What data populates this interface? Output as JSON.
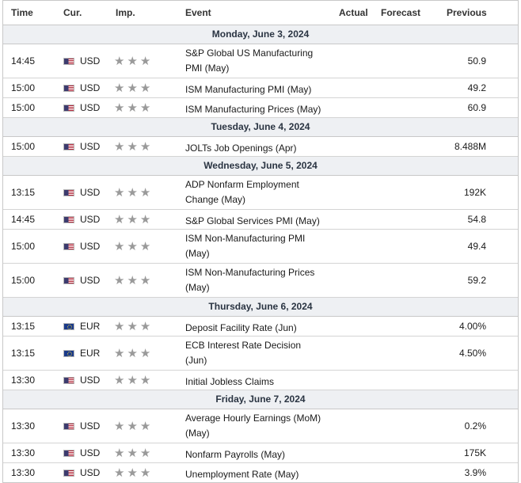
{
  "columns": {
    "time": "Time",
    "currency": "Cur.",
    "importance": "Imp.",
    "event": "Event",
    "actual": "Actual",
    "forecast": "Forecast",
    "previous": "Previous"
  },
  "icons": {
    "us": "us-flag-icon",
    "eu": "eu-flag-icon",
    "star": "star-icon"
  },
  "days": [
    {
      "label": "Monday, June 3, 2024",
      "rows": [
        {
          "time": "14:45",
          "flag": "us",
          "cur": "USD",
          "stars": "★★★",
          "event": "S&P Global US Manufacturing PMI (May)",
          "actual": "",
          "forecast": "",
          "previous": "50.9",
          "tall": true
        },
        {
          "time": "15:00",
          "flag": "us",
          "cur": "USD",
          "stars": "★★★",
          "event": "ISM Manufacturing PMI (May)",
          "actual": "",
          "forecast": "",
          "previous": "49.2",
          "tall": false
        },
        {
          "time": "15:00",
          "flag": "us",
          "cur": "USD",
          "stars": "★★★",
          "event": "ISM Manufacturing Prices (May)",
          "actual": "",
          "forecast": "",
          "previous": "60.9",
          "tall": false
        }
      ]
    },
    {
      "label": "Tuesday, June 4, 2024",
      "rows": [
        {
          "time": "15:00",
          "flag": "us",
          "cur": "USD",
          "stars": "★★★",
          "event": "JOLTs Job Openings (Apr)",
          "actual": "",
          "forecast": "",
          "previous": "8.488M",
          "tall": false
        }
      ]
    },
    {
      "label": "Wednesday, June 5, 2024",
      "rows": [
        {
          "time": "13:15",
          "flag": "us",
          "cur": "USD",
          "stars": "★★★",
          "event": "ADP Nonfarm Employment Change (May)",
          "actual": "",
          "forecast": "",
          "previous": "192K",
          "tall": true
        },
        {
          "time": "14:45",
          "flag": "us",
          "cur": "USD",
          "stars": "★★★",
          "event": "S&P Global Services PMI (May)",
          "actual": "",
          "forecast": "",
          "previous": "54.8",
          "tall": false
        },
        {
          "time": "15:00",
          "flag": "us",
          "cur": "USD",
          "stars": "★★★",
          "event": "ISM Non-Manufacturing PMI (May)",
          "actual": "",
          "forecast": "",
          "previous": "49.4",
          "tall": true
        },
        {
          "time": "15:00",
          "flag": "us",
          "cur": "USD",
          "stars": "★★★",
          "event": "ISM Non-Manufacturing Prices (May)",
          "actual": "",
          "forecast": "",
          "previous": "59.2",
          "tall": true
        }
      ]
    },
    {
      "label": "Thursday, June 6, 2024",
      "rows": [
        {
          "time": "13:15",
          "flag": "eu",
          "cur": "EUR",
          "stars": "★★★",
          "event": "Deposit Facility Rate (Jun)",
          "actual": "",
          "forecast": "",
          "previous": "4.00%",
          "tall": false
        },
        {
          "time": "13:15",
          "flag": "eu",
          "cur": "EUR",
          "stars": "★★★",
          "event": "ECB Interest Rate Decision (Jun)",
          "actual": "",
          "forecast": "",
          "previous": "4.50%",
          "tall": true
        },
        {
          "time": "13:30",
          "flag": "us",
          "cur": "USD",
          "stars": "★★★",
          "event": "Initial Jobless Claims",
          "actual": "",
          "forecast": "",
          "previous": "",
          "tall": false
        }
      ]
    },
    {
      "label": "Friday, June 7, 2024",
      "rows": [
        {
          "time": "13:30",
          "flag": "us",
          "cur": "USD",
          "stars": "★★★",
          "event": "Average Hourly Earnings (MoM) (May)",
          "actual": "",
          "forecast": "",
          "previous": "0.2%",
          "tall": true
        },
        {
          "time": "13:30",
          "flag": "us",
          "cur": "USD",
          "stars": "★★★",
          "event": "Nonfarm Payrolls (May)",
          "actual": "",
          "forecast": "",
          "previous": "175K",
          "tall": false
        },
        {
          "time": "13:30",
          "flag": "us",
          "cur": "USD",
          "stars": "★★★",
          "event": "Unemployment Rate (May)",
          "actual": "",
          "forecast": "",
          "previous": "3.9%",
          "tall": false
        }
      ]
    }
  ]
}
